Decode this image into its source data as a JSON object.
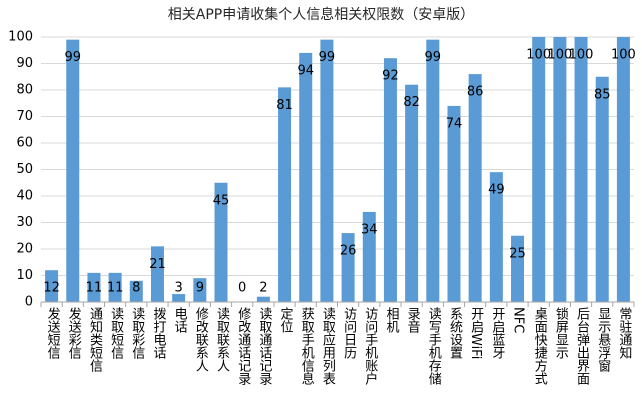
{
  "chart_data": {
    "type": "bar",
    "title": "相关APP申请收集个人信息相关权限数（安卓版）",
    "categories": [
      "发送短信",
      "发送彩信",
      "通知类短信",
      "读取短信",
      "读取彩信",
      "拨打电话",
      "电话",
      "修改联系人",
      "读取联系人",
      "修改通话记录",
      "读取通话记录",
      "定位",
      "获取手机信息",
      "读取应用列表",
      "访问日历",
      "访问手机账户",
      "相机",
      "录音",
      "读写手机存储",
      "系统设置",
      "开启WiFi",
      "开启蓝牙",
      "NFC",
      "桌面快捷方式",
      "锁屏显示",
      "后台弹出界面",
      "显示悬浮窗",
      "常驻通知"
    ],
    "values": [
      12,
      99,
      11,
      11,
      8,
      21,
      3,
      9,
      45,
      0,
      2,
      81,
      94,
      99,
      26,
      34,
      92,
      82,
      99,
      74,
      86,
      49,
      25,
      100,
      100,
      100,
      85,
      100
    ],
    "ylim": [
      0,
      100
    ],
    "yticks": [
      0,
      10,
      20,
      30,
      40,
      50,
      60,
      70,
      80,
      90,
      100
    ],
    "grid": true,
    "legend": "none",
    "data_labels": true,
    "colors": {
      "bar": "#5B9BD5",
      "grid": "#D9D9D9",
      "axis": "#A6A6A6",
      "text": "#000000"
    }
  }
}
